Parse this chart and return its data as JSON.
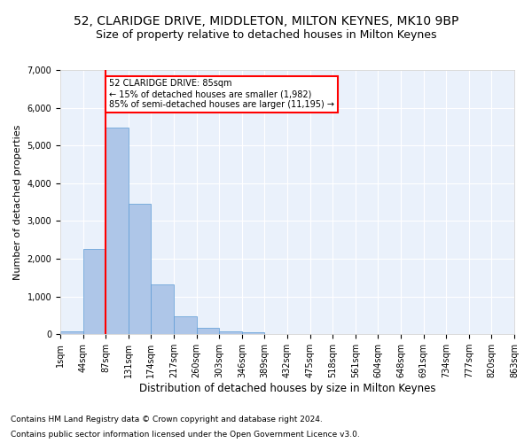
{
  "title1": "52, CLARIDGE DRIVE, MIDDLETON, MILTON KEYNES, MK10 9BP",
  "title2": "Size of property relative to detached houses in Milton Keynes",
  "xlabel": "Distribution of detached houses by size in Milton Keynes",
  "ylabel": "Number of detached properties",
  "footer1": "Contains HM Land Registry data © Crown copyright and database right 2024.",
  "footer2": "Contains public sector information licensed under the Open Government Licence v3.0.",
  "annotation_title": "52 CLARIDGE DRIVE: 85sqm",
  "annotation_line1": "← 15% of detached houses are smaller (1,982)",
  "annotation_line2": "85% of semi-detached houses are larger (11,195) →",
  "bar_color": "#aec6e8",
  "bar_edge_color": "#5b9bd5",
  "vline_color": "red",
  "vline_x": 2,
  "bar_heights": [
    75,
    2270,
    5480,
    3450,
    1320,
    480,
    160,
    85,
    55,
    0,
    0,
    0,
    0,
    0,
    0,
    0,
    0,
    0,
    0,
    0
  ],
  "categories": [
    "1sqm",
    "44sqm",
    "87sqm",
    "131sqm",
    "174sqm",
    "217sqm",
    "260sqm",
    "303sqm",
    "346sqm",
    "389sqm",
    "432sqm",
    "475sqm",
    "518sqm",
    "561sqm",
    "604sqm",
    "648sqm",
    "691sqm",
    "734sqm",
    "777sqm",
    "820sqm",
    "863sqm"
  ],
  "ylim": [
    0,
    7000
  ],
  "yticks": [
    0,
    1000,
    2000,
    3000,
    4000,
    5000,
    6000,
    7000
  ],
  "background_color": "#eaf1fb",
  "grid_color": "#ffffff",
  "title1_fontsize": 10,
  "title2_fontsize": 9,
  "ylabel_fontsize": 8,
  "xlabel_fontsize": 8.5,
  "tick_fontsize": 7,
  "footer_fontsize": 6.5
}
